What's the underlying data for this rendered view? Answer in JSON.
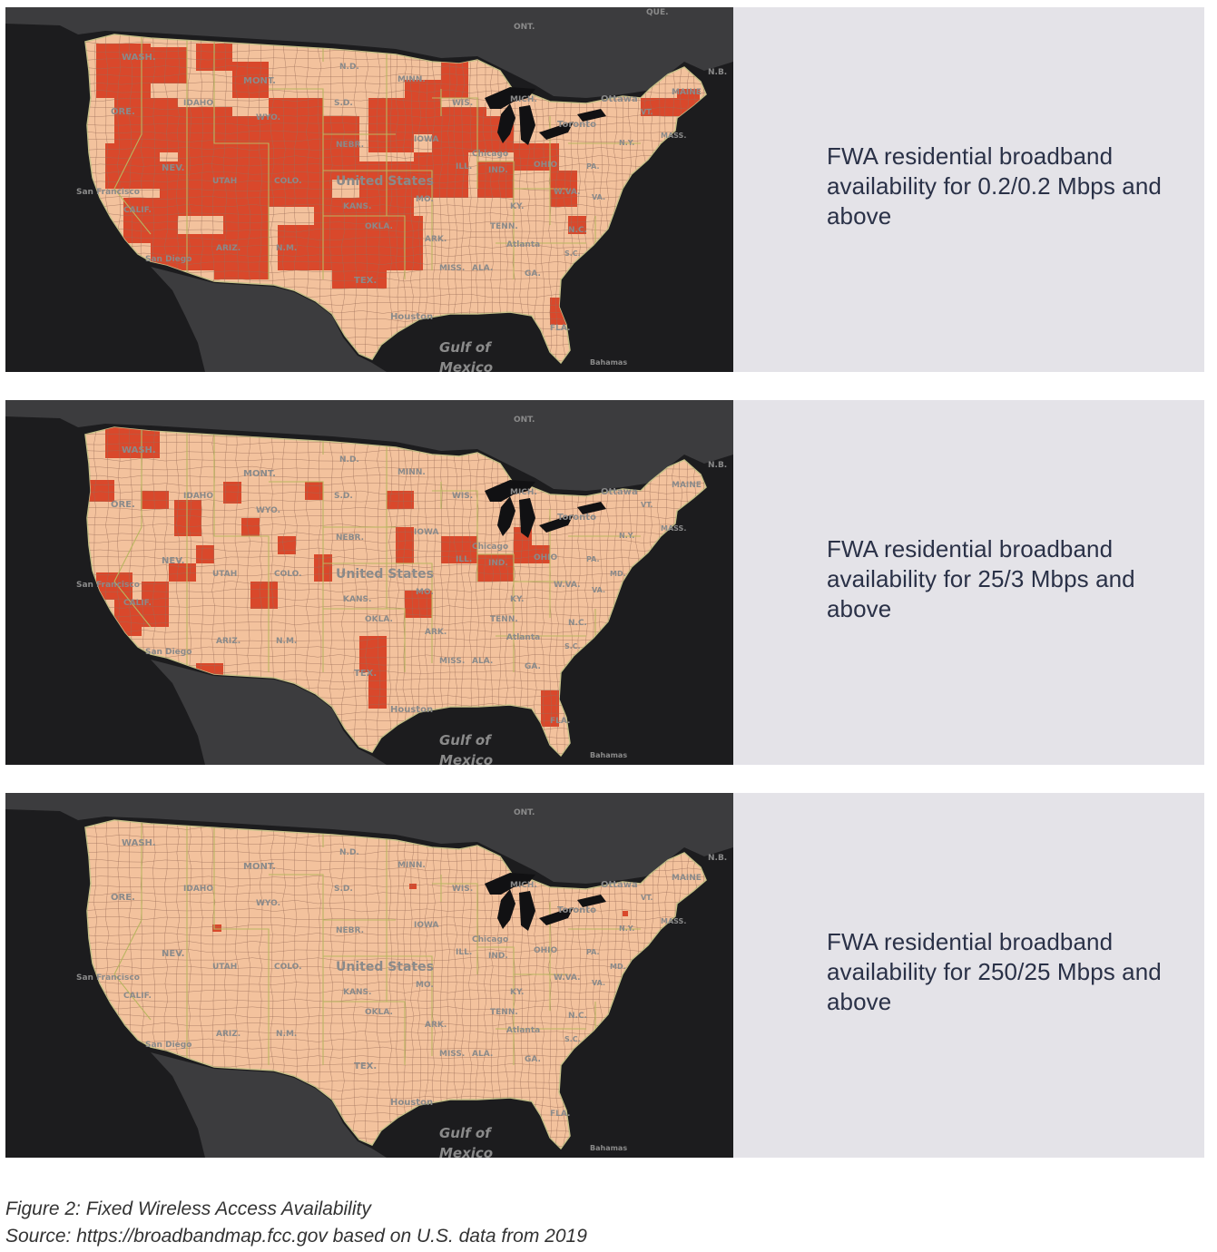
{
  "panels": [
    {
      "caption": "FWA residential broadband availability for 0.2/0.2 Mbps and above",
      "map_labels": [
        "WASH.",
        "MONT.",
        "N.D.",
        "MINN.",
        "ORE.",
        "IDAHO",
        "WYO.",
        "S.D.",
        "WIS.",
        "MICH.",
        "NEBR.",
        "IOWA",
        "NEV.",
        "UTAH",
        "COLO.",
        "United States",
        "ILL.",
        "IND.",
        "OHIO",
        "CALIF.",
        "KANS.",
        "MO.",
        "KY.",
        "W.VA.",
        "ARIZ.",
        "N.M.",
        "OKLA.",
        "ARK.",
        "TENN.",
        "N.C.",
        "TEX.",
        "MISS.",
        "ALA.",
        "GA.",
        "Houston",
        "Gulf of",
        "Mexico",
        "Bahamas",
        "San Francisco",
        "San Diego",
        "Chicago",
        "Atlanta",
        "Toronto",
        "Ottawa",
        "MAINE",
        "N.B.",
        "ONT.",
        "QUE.",
        "VT.",
        "MASS.",
        "N.Y.",
        "PA.",
        "VA.",
        "S.C.",
        "FLA."
      ],
      "coverage": "high"
    },
    {
      "caption": "FWA residential broadband availability for 25/3 Mbps and above",
      "map_labels": [
        "WASH.",
        "MONT.",
        "N.D.",
        "MINN.",
        "ORE.",
        "IDAHO",
        "WYO.",
        "S.D.",
        "WIS.",
        "MICH.",
        "NEBR.",
        "IOWA",
        "NEV.",
        "UTAH",
        "COLO.",
        "United States",
        "ILL.",
        "IND.",
        "OHIO",
        "CALIF.",
        "KANS.",
        "MO.",
        "KY.",
        "W.VA.",
        "ARIZ.",
        "N.M.",
        "OKLA.",
        "ARK.",
        "TENN.",
        "N.C.",
        "TEX.",
        "MISS.",
        "ALA.",
        "GA.",
        "Houston",
        "Gulf of",
        "Mexico",
        "Bahamas",
        "San Francisco",
        "San Diego",
        "Chicago",
        "Atlanta",
        "Toronto",
        "Ottawa",
        "MAINE",
        "N.B.",
        "ONT.",
        "VT.",
        "MASS.",
        "N.Y.",
        "PA.",
        "VA.",
        "S.C.",
        "FLA.",
        "MD."
      ],
      "coverage": "medium"
    },
    {
      "caption": "FWA residential broadband availability for 250/25 Mbps and above",
      "map_labels": [
        "WASH.",
        "MONT.",
        "N.D.",
        "MINN.",
        "ORE.",
        "IDAHO",
        "WYO.",
        "S.D.",
        "WIS.",
        "MICH.",
        "NEBR.",
        "IOWA",
        "NEV.",
        "UTAH",
        "COLO.",
        "United States",
        "ILL.",
        "IND.",
        "OHIO",
        "CALIF.",
        "KANS.",
        "MO.",
        "KY.",
        "W.VA.",
        "ARIZ.",
        "N.M.",
        "OKLA.",
        "ARK.",
        "TENN.",
        "N.C.",
        "TEX.",
        "MISS.",
        "ALA.",
        "GA.",
        "Houston",
        "Gulf of",
        "Mexico",
        "Bahamas",
        "San Francisco",
        "San Diego",
        "Chicago",
        "Atlanta",
        "Toronto",
        "Ottawa",
        "MAINE",
        "N.B.",
        "ONT.",
        "VT.",
        "MASS.",
        "N.Y.",
        "PA.",
        "VA.",
        "S.C.",
        "FLA.",
        "MD."
      ],
      "coverage": "low"
    }
  ],
  "colors": {
    "land": "#f3c29d",
    "coverage": "#d9482b",
    "county_lines": "#9b6e5a",
    "state_lines": "#b9b560",
    "water": "#1c1c1e",
    "canada_mexico": "#3c3c3e",
    "caption_bg": "#e4e3e8",
    "caption_text": "#2a3147"
  },
  "figure": {
    "title": "Figure 2: Fixed Wireless Access Availability",
    "source": "Source: https://broadbandmap.fcc.gov based on U.S. data from 2019"
  }
}
